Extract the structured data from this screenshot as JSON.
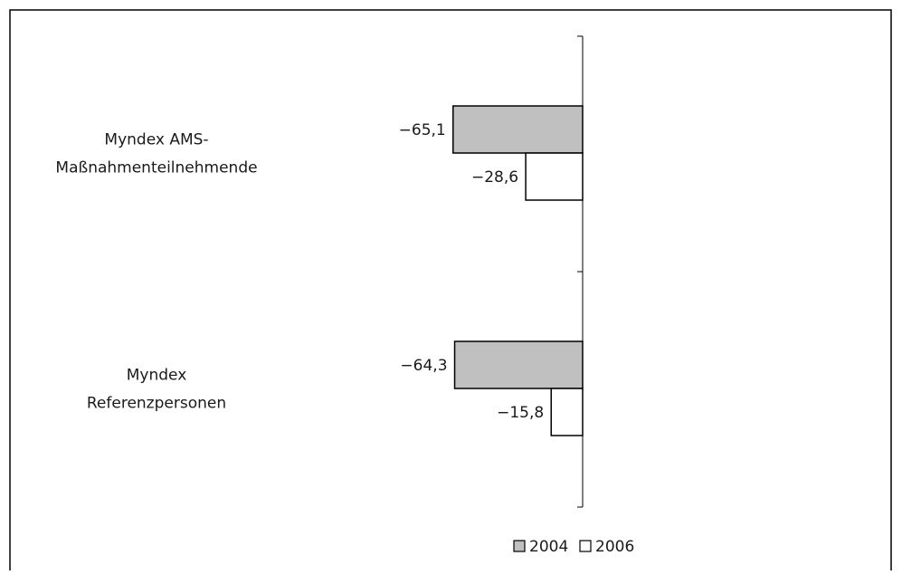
{
  "chart_data": {
    "type": "bar",
    "orientation": "horizontal",
    "title": "",
    "xlabel": "",
    "ylabel": "",
    "categories": [
      [
        "Myndex AMS-",
        "Maßnahmenteilnehmende"
      ],
      [
        "Myndex",
        "Referenzpersonen"
      ]
    ],
    "series": [
      {
        "name": "2004",
        "color": "#c0c0c0",
        "values": [
          -65.1,
          -64.3
        ],
        "value_labels": [
          "−65,1",
          "−64,3"
        ]
      },
      {
        "name": "2006",
        "color": "#ffffff",
        "values": [
          -28.6,
          -15.8
        ],
        "value_labels": [
          "−28,6",
          "−15,8"
        ]
      }
    ],
    "xlim": [
      -130,
      0
    ],
    "grid": false,
    "legend": {
      "position": "bottom",
      "items": [
        {
          "label": "2004",
          "swatch": "#c0c0c0"
        },
        {
          "label": "2006",
          "swatch": "#ffffff"
        }
      ]
    }
  }
}
